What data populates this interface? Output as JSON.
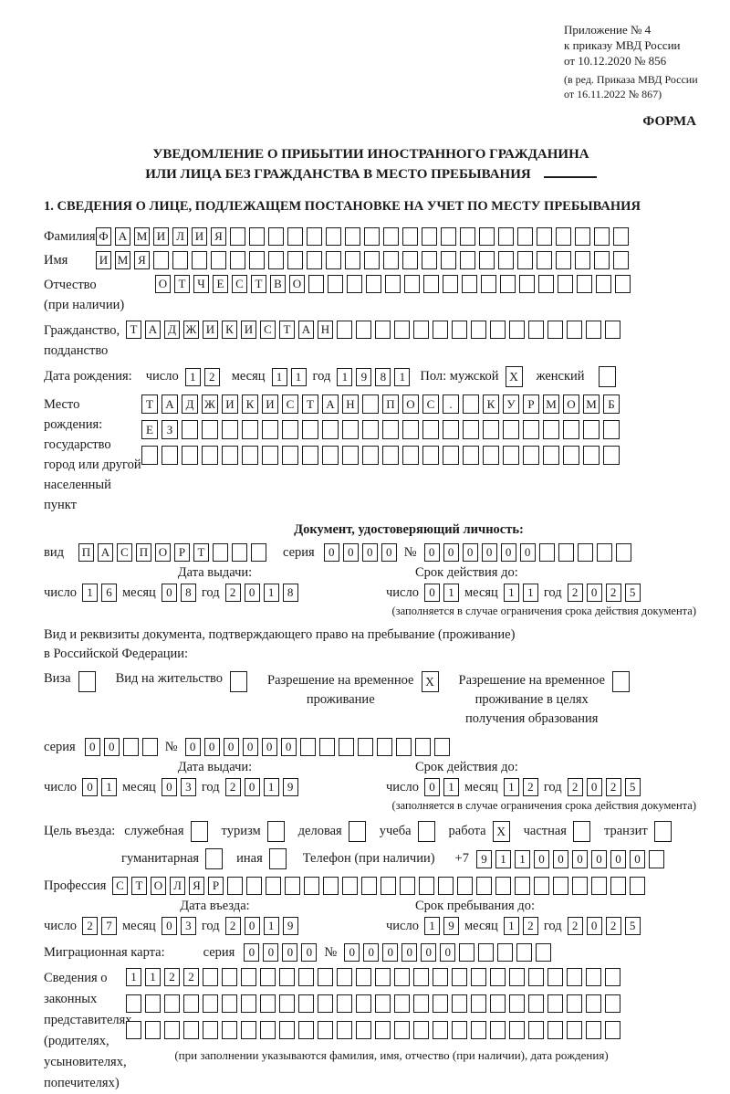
{
  "meta": {
    "appendix_lines": [
      "Приложение № 4",
      "к приказу МВД России",
      "от 10.12.2020 № 856"
    ],
    "amendment_lines": [
      "(в ред. Приказа МВД России",
      "от 16.11.2022 № 867)"
    ],
    "form_label": "ФОРМА"
  },
  "title": {
    "line1": "УВЕДОМЛЕНИЕ О ПРИБЫТИИ ИНОСТРАННОГО ГРАЖДАНИНА",
    "line2": "ИЛИ ЛИЦА БЕЗ ГРАЖДАНСТВА В МЕСТО ПРЕБЫВАНИЯ"
  },
  "section1_heading": "1. СВЕДЕНИЯ О ЛИЦЕ, ПОДЛЕЖАЩЕМ ПОСТАНОВКЕ НА УЧЕТ ПО МЕСТУ ПРЕБЫВАНИЯ",
  "labels": {
    "day": "число",
    "month": "месяц",
    "year": "год",
    "series": "серия",
    "number": "№"
  },
  "person": {
    "surname": {
      "label": "Фамилия",
      "boxes": {
        "value": "ФАМИЛИЯ",
        "length": 28
      }
    },
    "name": {
      "label": "Имя",
      "boxes": {
        "value": "ИМЯ",
        "length": 28
      }
    },
    "patronymic": {
      "label": "Отчество",
      "label2": "(при наличии)",
      "boxes": {
        "value": "ОТЧЕСТВО",
        "length": 25
      }
    },
    "citizenship": {
      "label": "Гражданство,",
      "label2": "подданство",
      "boxes": {
        "value": "ТАДЖИКИСТАН",
        "length": 26
      }
    },
    "birth_date_label": "Дата рождения:",
    "birth_date": {
      "day": {
        "value": "12",
        "length": 2
      },
      "month": {
        "value": "11",
        "length": 2
      },
      "year": {
        "value": "1981",
        "length": 4
      }
    },
    "sex": {
      "label": "Пол: мужской",
      "male": {
        "value": "X",
        "length": 1
      },
      "female_label": "женский",
      "female": {
        "value": "",
        "length": 1
      }
    },
    "birth_place": {
      "label1": "Место рождения:",
      "label2": "государство",
      "label3": "город или другой",
      "label4": "населенный пункт",
      "row1": {
        "value": "ТАДЖИКИСТАН ПОС. КУРМОМБ",
        "length": 24
      },
      "row2": {
        "value": "ЕЗ",
        "length": 24
      },
      "row3": {
        "value": "",
        "length": 24
      }
    }
  },
  "identity_doc": {
    "heading": "Документ, удостоверяющий личность:",
    "kind_label": "вид",
    "kind": {
      "value": "ПАСПОРТ",
      "length": 10
    },
    "series": {
      "value": "0000",
      "length": 4
    },
    "number": {
      "value": "000000",
      "length": 11
    },
    "issue_label": "Дата выдачи:",
    "issue": {
      "day": {
        "value": "16",
        "length": 2
      },
      "month": {
        "value": "08",
        "length": 2
      },
      "year": {
        "value": "2018",
        "length": 4
      }
    },
    "expiry_label": "Срок действия до:",
    "expiry": {
      "day": {
        "value": "01",
        "length": 2
      },
      "month": {
        "value": "11",
        "length": 2
      },
      "year": {
        "value": "2025",
        "length": 4
      }
    },
    "note": "(заполняется в случае ограничения срока действия документа)"
  },
  "residence_doc": {
    "intro1": "Вид и реквизиты документа, подтверждающего право на пребывание (проживание)",
    "intro2": "в Российской Федерации:",
    "visa_label": "Виза",
    "visa": {
      "value": "",
      "length": 1
    },
    "permit_label": "Вид на жительство",
    "permit": {
      "value": "",
      "length": 1
    },
    "rvp_label": "Разрешение на временное\nпроживание",
    "rvp": {
      "value": "X",
      "length": 1
    },
    "rvp_edu_label": "Разрешение на временное\nпроживание в целях\nполучения образования",
    "rvp_edu": {
      "value": "",
      "length": 1
    },
    "series": {
      "value": "00",
      "length": 4
    },
    "number": {
      "value": "000000",
      "length": 14
    },
    "issue_label": "Дата выдачи:",
    "issue": {
      "day": {
        "value": "01",
        "length": 2
      },
      "month": {
        "value": "03",
        "length": 2
      },
      "year": {
        "value": "2019",
        "length": 4
      }
    },
    "expiry_label": "Срок действия до:",
    "expiry": {
      "day": {
        "value": "01",
        "length": 2
      },
      "month": {
        "value": "12",
        "length": 2
      },
      "year": {
        "value": "2025",
        "length": 4
      }
    },
    "note": "(заполняется в случае ограничения срока действия документа)"
  },
  "entry": {
    "purpose_label": "Цель въезда:",
    "purposes_row1": [
      {
        "label": "служебная",
        "value": ""
      },
      {
        "label": "туризм",
        "value": ""
      },
      {
        "label": "деловая",
        "value": ""
      },
      {
        "label": "учеба",
        "value": ""
      },
      {
        "label": "работа",
        "value": "X"
      },
      {
        "label": "частная",
        "value": ""
      },
      {
        "label": "транзит",
        "value": ""
      }
    ],
    "purposes_row2": [
      {
        "label": "гуманитарная",
        "value": ""
      },
      {
        "label": "иная",
        "value": ""
      }
    ],
    "phone_label": "Телефон (при наличии)",
    "phone_prefix": "+7",
    "phone": {
      "value": "911000000",
      "length": 10
    },
    "profession_label": "Профессия",
    "profession": {
      "value": "СТОЛЯР",
      "length": 28
    },
    "entry_date_label": "Дата въезда:",
    "entry_date": {
      "day": {
        "value": "27",
        "length": 2
      },
      "month": {
        "value": "03",
        "length": 2
      },
      "year": {
        "value": "2019",
        "length": 4
      }
    },
    "stay_until_label": "Срок пребывания до:",
    "stay_until": {
      "day": {
        "value": "19",
        "length": 2
      },
      "month": {
        "value": "12",
        "length": 2
      },
      "year": {
        "value": "2025",
        "length": 4
      }
    }
  },
  "migration_card": {
    "label": "Миграционная карта:",
    "series": {
      "value": "0000",
      "length": 4
    },
    "number": {
      "value": "000000",
      "length": 11
    }
  },
  "representatives": {
    "label1": "Сведения о",
    "label2": "законных",
    "label3": "представителях",
    "label4": "(родителях,",
    "label5": "усыновителях,",
    "label6": "попечителях)",
    "row1": {
      "value": "1122",
      "length": 26
    },
    "row2": {
      "value": "",
      "length": 26
    },
    "row3": {
      "value": "",
      "length": 26
    },
    "note": "(при заполнении указываются фамилия, имя, отчество (при наличии), дата рождения)"
  }
}
